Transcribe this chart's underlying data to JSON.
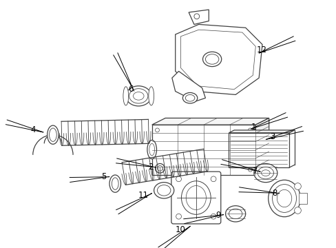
{
  "background_color": "#ffffff",
  "line_color": "#404040",
  "label_color": "#000000",
  "label_fontsize": 8.5,
  "lw": 0.9
}
